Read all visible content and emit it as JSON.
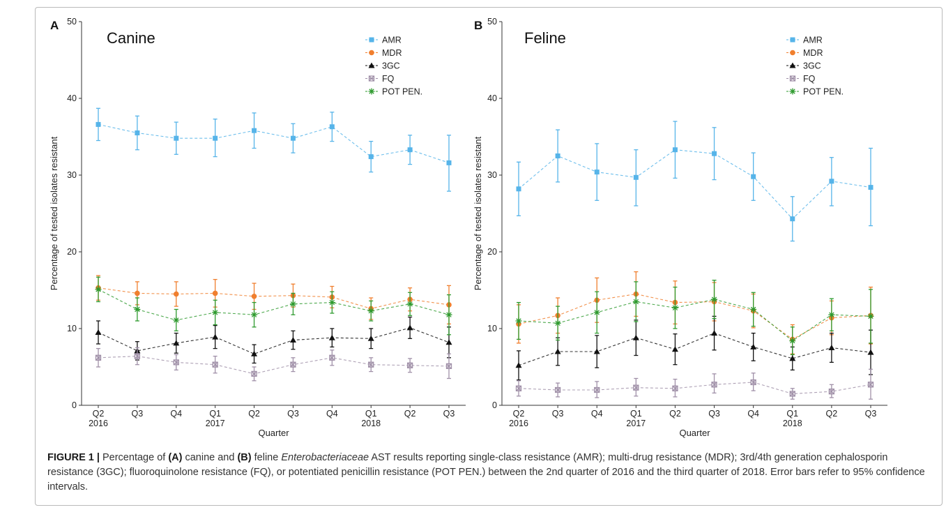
{
  "caption": {
    "label": "FIGURE 1 |",
    "t1": " Percentage of ",
    "b1": "(A)",
    "t2": " canine and ",
    "b2": "(B)",
    "t3": " feline ",
    "i1": "Enterobacteriaceae",
    "t4": " AST results reporting single-class resistance (AMR); multi-drug resistance (MDR); 3rd/4th generation cephalosporin resistance (3GC); fluoroquinolone resistance (FQ), or potentiated penicillin resistance (POT PEN.) between the 2nd quarter of 2016 and the third quarter of 2018. Error bars refer to 95% confidence intervals."
  },
  "chart_data": [
    {
      "type": "line",
      "panel": "A",
      "title": "Canine",
      "xlabel": "Quarter",
      "ylabel": "Percentage of tested isolates resistant",
      "ylim": [
        0,
        50
      ],
      "yticks": [
        0,
        10,
        20,
        30,
        40,
        50
      ],
      "categories": [
        "Q2",
        "Q3",
        "Q4",
        "Q1",
        "Q2",
        "Q3",
        "Q4",
        "Q1",
        "Q2",
        "Q3"
      ],
      "year_labels": [
        "2016",
        "",
        "",
        "2017",
        "",
        "",
        "",
        "2018",
        "",
        ""
      ],
      "legend_position": "top-right",
      "grid": false,
      "series": [
        {
          "name": "AMR",
          "color": "#56b4e9",
          "marker": "square",
          "values": [
            36.6,
            35.5,
            34.8,
            34.8,
            35.8,
            34.8,
            36.3,
            32.4,
            33.3,
            31.6
          ],
          "lower": [
            34.5,
            33.3,
            32.7,
            32.4,
            33.5,
            32.9,
            34.4,
            30.4,
            31.4,
            27.9
          ],
          "upper": [
            38.7,
            37.7,
            36.9,
            37.3,
            38.1,
            36.7,
            38.2,
            34.4,
            35.2,
            35.2
          ]
        },
        {
          "name": "MDR",
          "color": "#f07f2e",
          "marker": "circle",
          "values": [
            15.3,
            14.6,
            14.5,
            14.6,
            14.2,
            14.3,
            14.1,
            12.6,
            13.8,
            13.1
          ],
          "lower": [
            13.7,
            13.1,
            12.9,
            12.8,
            12.5,
            12.8,
            12.7,
            11.2,
            12.3,
            10.6
          ],
          "upper": [
            16.9,
            16.1,
            16.1,
            16.4,
            15.9,
            15.8,
            15.5,
            14.0,
            15.3,
            15.6
          ]
        },
        {
          "name": "3GC",
          "color": "#111111",
          "marker": "triangle",
          "values": [
            9.5,
            7.1,
            8.1,
            8.9,
            6.7,
            8.5,
            8.8,
            8.7,
            10.1,
            8.2
          ],
          "lower": [
            8.0,
            5.9,
            6.8,
            7.4,
            5.5,
            7.3,
            7.6,
            7.4,
            8.7,
            6.2
          ],
          "upper": [
            11.0,
            8.3,
            9.4,
            10.4,
            7.9,
            9.7,
            10.0,
            10.0,
            11.5,
            10.2
          ]
        },
        {
          "name": "FQ",
          "color": "#a090a8",
          "marker": "square-open",
          "values": [
            6.2,
            6.4,
            5.6,
            5.3,
            4.1,
            5.3,
            6.2,
            5.3,
            5.2,
            5.1
          ],
          "lower": [
            5.0,
            5.3,
            4.6,
            4.2,
            3.2,
            4.4,
            5.2,
            4.4,
            4.3,
            3.5
          ],
          "upper": [
            7.4,
            7.5,
            6.6,
            6.4,
            5.0,
            6.2,
            7.2,
            6.2,
            6.1,
            6.7
          ]
        },
        {
          "name": "POT PEN.",
          "color": "#2e9a2e",
          "marker": "asterisk",
          "values": [
            15.1,
            12.5,
            11.1,
            12.1,
            11.8,
            13.2,
            13.4,
            12.3,
            13.2,
            11.8
          ],
          "lower": [
            13.5,
            11.0,
            9.7,
            10.5,
            10.2,
            11.8,
            12.0,
            11.0,
            11.7,
            9.2
          ],
          "upper": [
            16.7,
            14.0,
            12.5,
            13.7,
            13.4,
            14.6,
            14.8,
            13.6,
            14.7,
            14.4
          ]
        }
      ]
    },
    {
      "type": "line",
      "panel": "B",
      "title": "Feline",
      "xlabel": "Quarter",
      "ylabel": "Percentage of tested isolates resistant",
      "ylim": [
        0,
        50
      ],
      "yticks": [
        0,
        10,
        20,
        30,
        40,
        50
      ],
      "categories": [
        "Q2",
        "Q3",
        "Q4",
        "Q1",
        "Q2",
        "Q3",
        "Q4",
        "Q1",
        "Q2",
        "Q3"
      ],
      "year_labels": [
        "2016",
        "",
        "",
        "2017",
        "",
        "",
        "",
        "2018",
        "",
        ""
      ],
      "legend_position": "top-right",
      "grid": false,
      "series": [
        {
          "name": "AMR",
          "color": "#56b4e9",
          "marker": "square",
          "values": [
            28.2,
            32.5,
            30.4,
            29.7,
            33.3,
            32.8,
            29.8,
            24.3,
            29.2,
            28.4
          ],
          "lower": [
            24.7,
            29.1,
            26.7,
            26.0,
            29.6,
            29.4,
            26.7,
            21.4,
            26.0,
            23.4
          ],
          "upper": [
            31.7,
            35.9,
            34.1,
            33.3,
            37.0,
            36.2,
            32.9,
            27.2,
            32.3,
            33.5
          ]
        },
        {
          "name": "MDR",
          "color": "#f07f2e",
          "marker": "circle",
          "values": [
            10.6,
            11.7,
            13.7,
            14.5,
            13.4,
            13.5,
            12.3,
            8.6,
            11.4,
            11.7
          ],
          "lower": [
            8.1,
            9.4,
            10.8,
            11.6,
            10.6,
            11.0,
            10.1,
            6.7,
            9.2,
            8.0
          ],
          "upper": [
            13.1,
            14.0,
            16.6,
            17.4,
            16.2,
            16.0,
            14.5,
            10.5,
            13.6,
            15.4
          ]
        },
        {
          "name": "3GC",
          "color": "#111111",
          "marker": "triangle",
          "values": [
            5.2,
            7.0,
            7.0,
            8.8,
            7.3,
            9.4,
            7.6,
            6.1,
            7.5,
            6.9
          ],
          "lower": [
            3.3,
            5.2,
            4.9,
            6.5,
            5.3,
            7.2,
            5.8,
            4.6,
            5.6,
            4.0
          ],
          "upper": [
            7.1,
            8.8,
            9.1,
            11.1,
            9.3,
            11.6,
            9.4,
            7.6,
            9.4,
            9.8
          ]
        },
        {
          "name": "FQ",
          "color": "#a090a8",
          "marker": "square-open",
          "values": [
            2.2,
            2.0,
            2.0,
            2.3,
            2.2,
            2.7,
            3.0,
            1.5,
            1.8,
            2.7
          ],
          "lower": [
            1.2,
            1.1,
            1.0,
            1.2,
            1.1,
            1.6,
            1.9,
            0.8,
            1.0,
            0.8
          ],
          "upper": [
            3.2,
            2.9,
            3.1,
            3.5,
            3.4,
            4.1,
            4.2,
            2.2,
            2.7,
            4.7
          ]
        },
        {
          "name": "POT PEN.",
          "color": "#2e9a2e",
          "marker": "asterisk",
          "values": [
            11.0,
            10.7,
            12.1,
            13.5,
            12.7,
            13.8,
            12.5,
            8.4,
            11.8,
            11.6
          ],
          "lower": [
            8.6,
            8.5,
            9.4,
            10.9,
            10.0,
            11.3,
            10.3,
            6.6,
            9.7,
            8.1
          ],
          "upper": [
            13.4,
            12.9,
            14.8,
            16.1,
            15.4,
            16.3,
            14.7,
            10.2,
            13.9,
            15.1
          ]
        }
      ]
    }
  ]
}
